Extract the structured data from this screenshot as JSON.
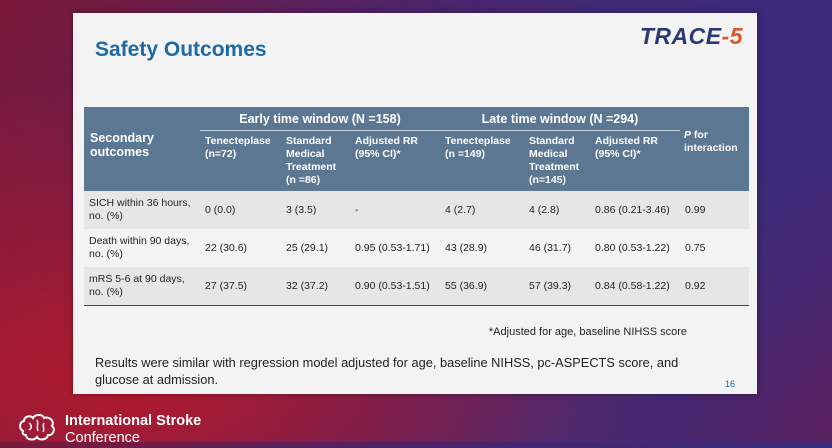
{
  "slide": {
    "title": "Safety Outcomes",
    "logo": {
      "part1": "TRACE",
      "part2": "-5"
    },
    "page_number": "16"
  },
  "table": {
    "secondary_header": "Secondary outcomes",
    "early_header": "Early time window (N =158)",
    "late_header": "Late time window (N =294)",
    "p_header_italic": "P",
    "p_header_rest": " for interaction",
    "subheaders": [
      "Tenecteplase (n=72)",
      "Standard Medical Treatment (n =86)",
      "Adjusted RR (95% CI)*",
      "Tenecteplase (n =149)",
      "Standard Medical Treatment (n=145)",
      "Adjusted RR (95% CI)*"
    ],
    "rows": [
      [
        "SICH within 36 hours, no. (%)",
        "0 (0.0)",
        "3 (3.5)",
        "-",
        "4 (2.7)",
        "4 (2.8)",
        "0.86 (0.21-3.46)",
        "0.99"
      ],
      [
        "Death within 90 days, no. (%)",
        "22 (30.6)",
        "25 (29.1)",
        "0.95 (0.53-1.71)",
        "43 (28.9)",
        "46 (31.7)",
        "0.80 (0.53-1.22)",
        "0.75"
      ],
      [
        "mRS 5-6 at 90 days, no. (%)",
        "27 (37.5)",
        "32 (37.2)",
        "0.90 (0.53-1.51)",
        "55 (36.9)",
        "57 (39.3)",
        "0.84 (0.58-1.22)",
        "0.92"
      ]
    ]
  },
  "footnote": "*Adjusted for age, baseline NIHSS score",
  "results_text": "Results were similar with regression model adjusted for age, baseline NIHSS, pc-ASPECTS score, and glucose at admission.",
  "conference": {
    "line1": "International Stroke",
    "line2": "Conference"
  }
}
